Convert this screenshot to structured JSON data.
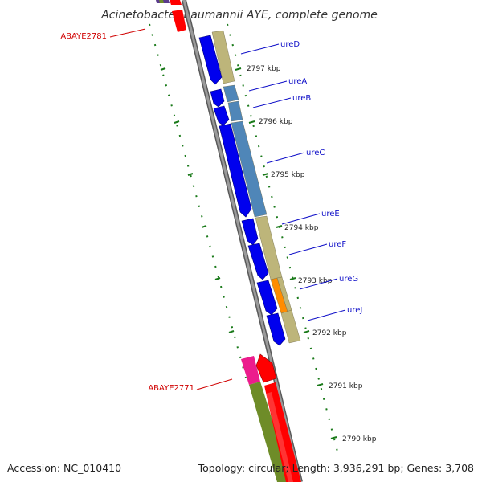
{
  "title": "Acinetobacter baumannii AYE, complete genome",
  "footer": {
    "accession": "Accession: NC_010410",
    "summary": "Topology: circular; Length: 3,936,291 bp; Genes: 3,708"
  },
  "kbp_ticks": [
    "2797 kbp",
    "2796 kbp",
    "2795 kbp",
    "2794 kbp",
    "2793 kbp",
    "2792 kbp",
    "2791 kbp",
    "2790 kbp"
  ],
  "gene_labels": [
    "ureD",
    "ureA",
    "ureB",
    "ureC",
    "ureE",
    "ureF",
    "ureG",
    "ureJ"
  ],
  "locus_labels": [
    "ABAYE2781",
    "ABAYE2771"
  ],
  "colors": {
    "backbone": "#808080",
    "forward_gene": "#0000ee",
    "reverse_gene": "#ff0000",
    "tick": "#1a7a1a",
    "gene_label": "#1010c8",
    "locus_label": "#d00000",
    "khaki": "#bdb57a",
    "steelblue": "#4f86b8",
    "orange": "#ff8c00",
    "olive": "#6e8c28",
    "magenta": "#ec1c8c",
    "purple": "#5a3a8c"
  }
}
